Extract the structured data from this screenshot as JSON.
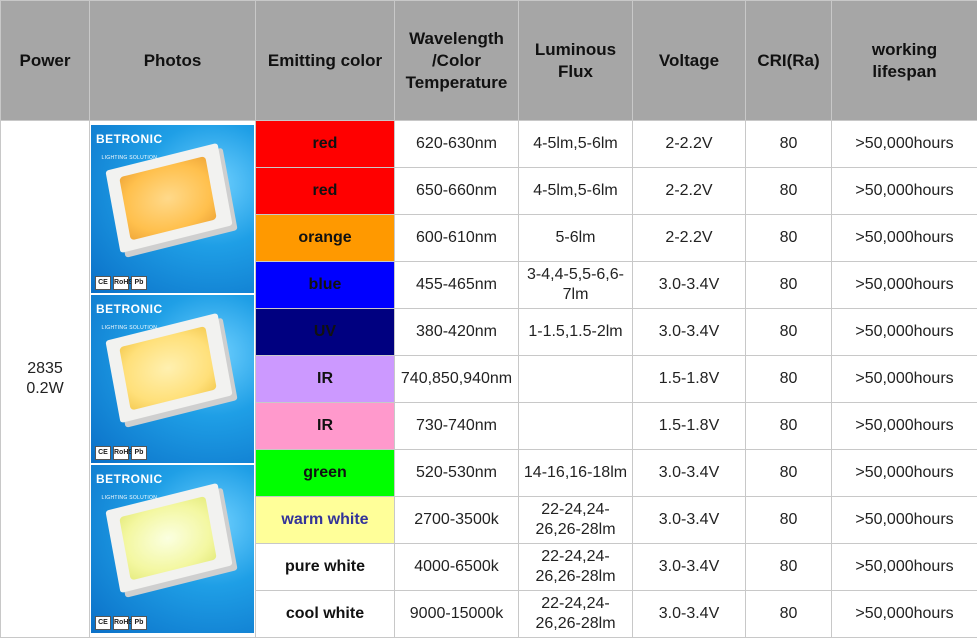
{
  "headers": {
    "power": "Power",
    "photos": "Photos",
    "emitting_color": "Emitting color",
    "wavelength": [
      "Wavelength",
      "/Color",
      "Temperature"
    ],
    "luminous_flux": [
      "Luminous",
      "Flux"
    ],
    "voltage": "Voltage",
    "cri": "CRI(Ra)",
    "lifespan": [
      "working",
      "lifespan"
    ]
  },
  "power": [
    "2835",
    "0.2W"
  ],
  "photo_labels": {
    "brand": "BETRONIC",
    "tagline": "LIGHTING SOLUTION",
    "certs": [
      "CE",
      "RoHS",
      "Pb"
    ]
  },
  "rows": [
    {
      "color": "red",
      "bg": "#ff0000",
      "fg": "#111111",
      "wavelength": "620-630nm",
      "flux": "4-5lm,5-6lm",
      "voltage": "2-2.2V",
      "cri": "80",
      "lifespan": ">50,000hours"
    },
    {
      "color": "red",
      "bg": "#ff0000",
      "fg": "#111111",
      "wavelength": "650-660nm",
      "flux": "4-5lm,5-6lm",
      "voltage": "2-2.2V",
      "cri": "80",
      "lifespan": ">50,000hours"
    },
    {
      "color": "orange",
      "bg": "#ff9900",
      "fg": "#111111",
      "wavelength": "600-610nm",
      "flux": "5-6lm",
      "voltage": "2-2.2V",
      "cri": "80",
      "lifespan": ">50,000hours"
    },
    {
      "color": "blue",
      "bg": "#0000ff",
      "fg": "#111111",
      "wavelength": "455-465nm",
      "flux": "3-4,4-5,5-6,6-7lm",
      "voltage": "3.0-3.4V",
      "cri": "80",
      "lifespan": ">50,000hours"
    },
    {
      "color": "UV",
      "bg": "#000080",
      "fg": "#111111",
      "wavelength": "380-420nm",
      "flux": "1-1.5,1.5-2lm",
      "voltage": "3.0-3.4V",
      "cri": "80",
      "lifespan": ">50,000hours"
    },
    {
      "color": "IR",
      "bg": "#cc99ff",
      "fg": "#111111",
      "wavelength": "740,850,940nm",
      "flux": "",
      "voltage": "1.5-1.8V",
      "cri": "80",
      "lifespan": ">50,000hours"
    },
    {
      "color": "IR",
      "bg": "#ff99cc",
      "fg": "#111111",
      "wavelength": "730-740nm",
      "flux": "",
      "voltage": "1.5-1.8V",
      "cri": "80",
      "lifespan": ">50,000hours"
    },
    {
      "color": "green",
      "bg": "#00ff00",
      "fg": "#111111",
      "wavelength": "520-530nm",
      "flux": "14-16,16-18lm",
      "voltage": "3.0-3.4V",
      "cri": "80",
      "lifespan": ">50,000hours"
    },
    {
      "color": "warm white",
      "bg": "#ffff99",
      "fg": "#333399",
      "wavelength": "2700-3500k",
      "flux": "22-24,24-26,26-28lm",
      "voltage": "3.0-3.4V",
      "cri": "80",
      "lifespan": ">50,000hours"
    },
    {
      "color": "pure white",
      "bg": "#ffffff",
      "fg": "#111111",
      "wavelength": "4000-6500k",
      "flux": "22-24,24-26,26-28lm",
      "voltage": "3.0-3.4V",
      "cri": "80",
      "lifespan": ">50,000hours"
    },
    {
      "color": "cool white",
      "bg": "#ffffff",
      "fg": "#111111",
      "wavelength": "9000-15000k",
      "flux": "22-24,24-26,26-28lm",
      "voltage": "3.0-3.4V",
      "cri": "80",
      "lifespan": ">50,000hours"
    }
  ]
}
